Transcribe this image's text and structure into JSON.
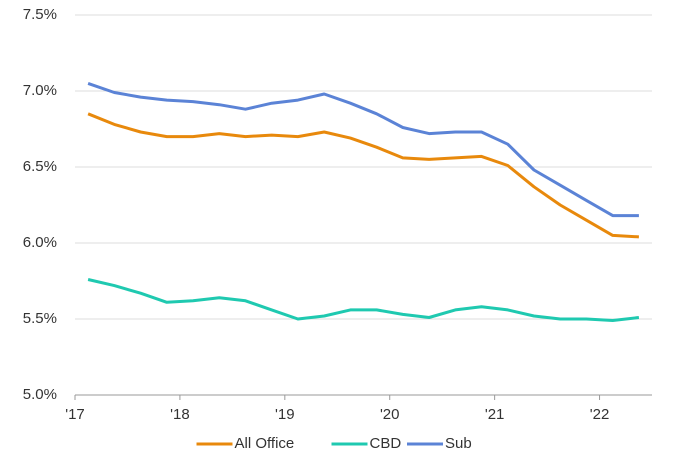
{
  "chart_data": {
    "type": "line",
    "x": [
      2017.125,
      2017.375,
      2017.625,
      2017.875,
      2018.125,
      2018.375,
      2018.625,
      2018.875,
      2019.125,
      2019.375,
      2019.625,
      2019.875,
      2020.125,
      2020.375,
      2020.625,
      2020.875,
      2021.125,
      2021.375,
      2021.625,
      2021.875,
      2022.125,
      2022.375
    ],
    "series": [
      {
        "name": "All Office",
        "color": "#e8890c",
        "values": [
          6.85,
          6.78,
          6.73,
          6.7,
          6.7,
          6.72,
          6.7,
          6.71,
          6.7,
          6.73,
          6.69,
          6.63,
          6.56,
          6.55,
          6.56,
          6.57,
          6.51,
          6.37,
          6.25,
          6.15,
          6.05,
          6.04
        ]
      },
      {
        "name": "CBD",
        "color": "#1fc9b0",
        "values": [
          5.76,
          5.72,
          5.67,
          5.61,
          5.62,
          5.64,
          5.62,
          5.56,
          5.5,
          5.52,
          5.56,
          5.56,
          5.53,
          5.51,
          5.56,
          5.58,
          5.56,
          5.52,
          5.5,
          5.5,
          5.49,
          5.51
        ]
      },
      {
        "name": "Sub",
        "color": "#5b83d6",
        "values": [
          7.05,
          6.99,
          6.96,
          6.94,
          6.93,
          6.91,
          6.88,
          6.92,
          6.94,
          6.98,
          6.92,
          6.85,
          6.76,
          6.72,
          6.73,
          6.73,
          6.65,
          6.48,
          6.38,
          6.28,
          6.18,
          6.18
        ]
      }
    ],
    "xlim": [
      2017,
      2022.5
    ],
    "ylim": [
      5.0,
      7.5
    ],
    "xticks": [
      {
        "value": 2017,
        "label": "'17"
      },
      {
        "value": 2018,
        "label": "'18"
      },
      {
        "value": 2019,
        "label": "'19"
      },
      {
        "value": 2020,
        "label": "'20"
      },
      {
        "value": 2021,
        "label": "'21"
      },
      {
        "value": 2022,
        "label": "'22"
      }
    ],
    "yticks": [
      {
        "value": 5.0,
        "label": "5.0%"
      },
      {
        "value": 5.5,
        "label": "5.5%"
      },
      {
        "value": 6.0,
        "label": "6.0%"
      },
      {
        "value": 6.5,
        "label": "6.5%"
      },
      {
        "value": 7.0,
        "label": "7.0%"
      },
      {
        "value": 7.5,
        "label": "7.5%"
      }
    ],
    "grid": true,
    "legend": "bottom"
  }
}
